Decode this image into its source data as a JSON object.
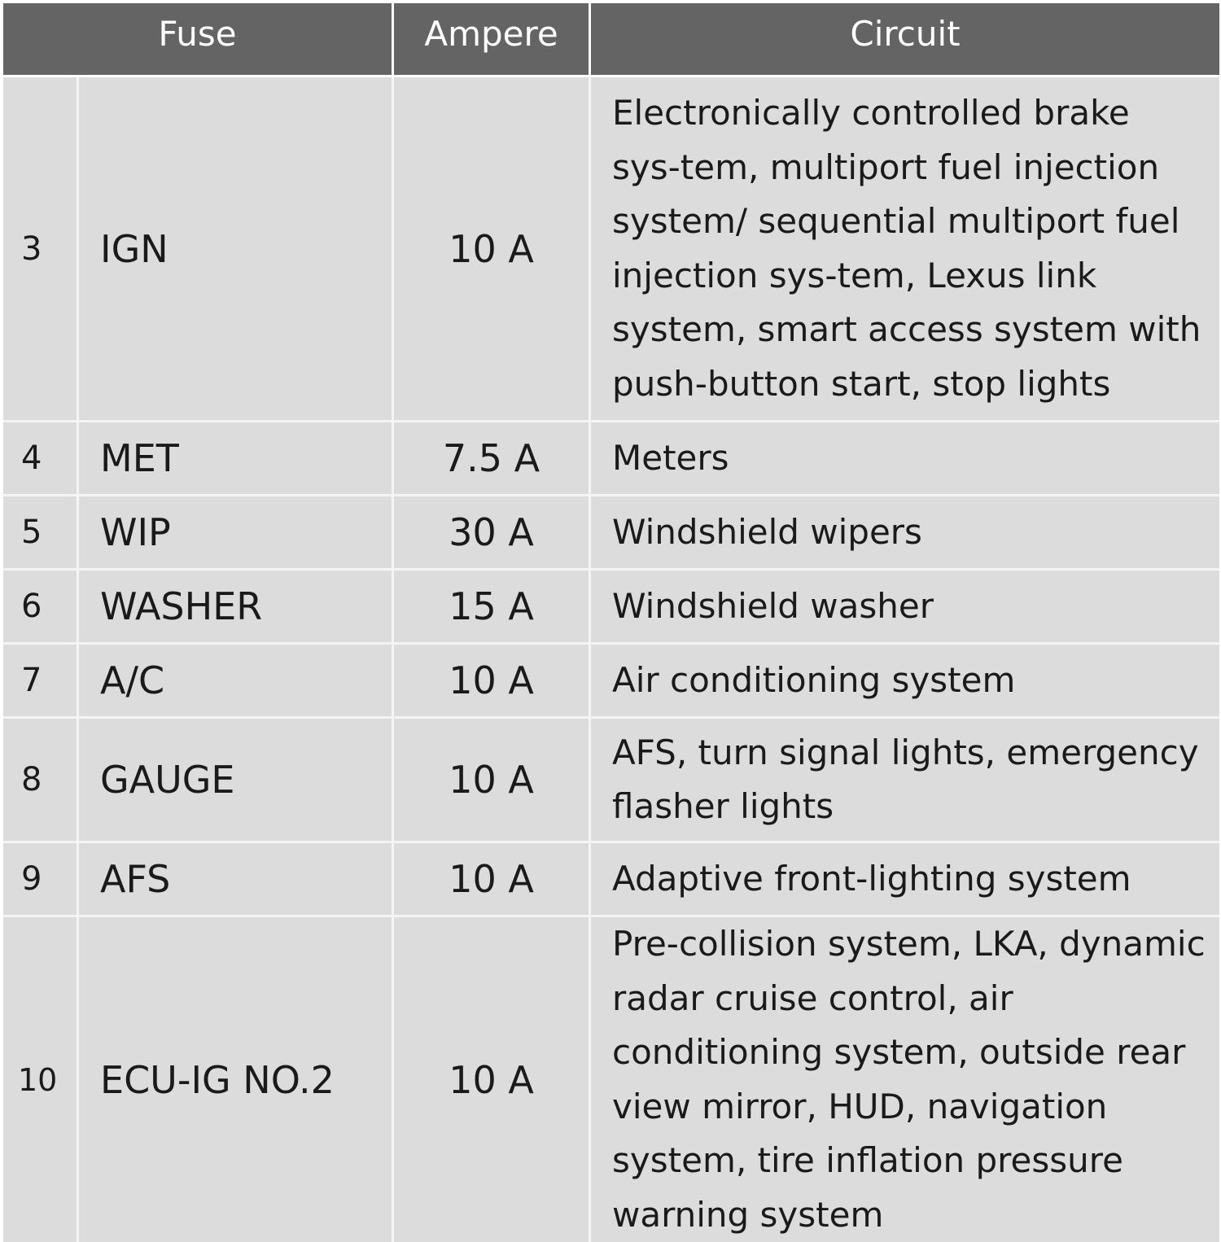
{
  "table": {
    "headers": {
      "fuse": "Fuse",
      "ampere": "Ampere",
      "circuit": "Circuit"
    },
    "rows": [
      {
        "num": "3",
        "name": "IGN",
        "ampere": "10 A",
        "circuit": "Electronically controlled brake sys-tem, multiport fuel injection system/ sequential multiport fuel injection sys-tem, Lexus link system, smart access system with push-button start, stop lights"
      },
      {
        "num": "4",
        "name": "MET",
        "ampere": "7.5 A",
        "circuit": "Meters"
      },
      {
        "num": "5",
        "name": "WIP",
        "ampere": "30 A",
        "circuit": "Windshield wipers"
      },
      {
        "num": "6",
        "name": "WASHER",
        "ampere": "15 A",
        "circuit": "Windshield washer"
      },
      {
        "num": "7",
        "name": "A/C",
        "ampere": "10 A",
        "circuit": "Air conditioning system"
      },
      {
        "num": "8",
        "name": "GAUGE",
        "ampere": "10 A",
        "circuit": "AFS, turn signal lights, emergency flasher lights"
      },
      {
        "num": "9",
        "name": "AFS",
        "ampere": "10 A",
        "circuit": "Adaptive front-lighting system"
      },
      {
        "num": "10",
        "name": "ECU-IG NO.2",
        "ampere": "10 A",
        "circuit": "Pre-collision system, LKA, dynamic radar cruise control, air conditioning system, outside rear view mirror, HUD, navigation system, tire inflation pressure warning system"
      }
    ]
  }
}
